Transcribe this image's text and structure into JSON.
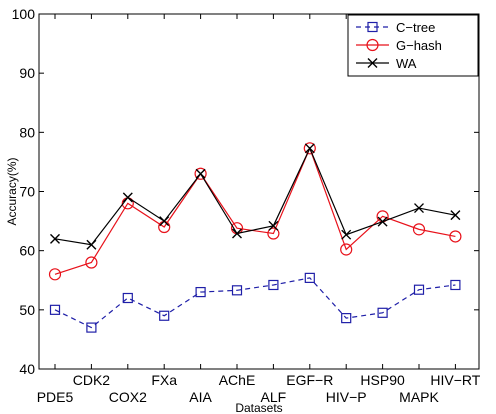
{
  "chart_data": {
    "type": "line",
    "xlabel": "Datasets",
    "ylabel": "Accuracy(%)",
    "ylim": [
      40,
      100
    ],
    "yticks": [
      40,
      50,
      60,
      70,
      80,
      90,
      100
    ],
    "categories": [
      "PDE5",
      "CDK2",
      "COX2",
      "FXa",
      "AIA",
      "AChE",
      "ALF",
      "EGF−R",
      "HIV−P",
      "HSP90",
      "MAPK",
      "HIV−RT"
    ],
    "legend_position": "top-right",
    "grid": false,
    "series": [
      {
        "name": "C−tree",
        "color": "#1f1fa8",
        "line_style": "dashed",
        "marker": "square",
        "values": [
          50,
          47,
          52,
          49,
          53,
          53.3,
          54.2,
          55.4,
          48.6,
          49.5,
          53.4,
          54.2
        ]
      },
      {
        "name": "G−hash",
        "color": "#e8121b",
        "line_style": "solid",
        "marker": "circle",
        "values": [
          56,
          58,
          68,
          64,
          73,
          63.8,
          62.9,
          77.3,
          60.2,
          65.8,
          63.6,
          62.4
        ]
      },
      {
        "name": "WA",
        "color": "#000000",
        "line_style": "solid",
        "marker": "x",
        "values": [
          62,
          61,
          69,
          65,
          73,
          62.9,
          64.2,
          77.3,
          62.7,
          64.9,
          67.2,
          66
        ]
      }
    ]
  }
}
